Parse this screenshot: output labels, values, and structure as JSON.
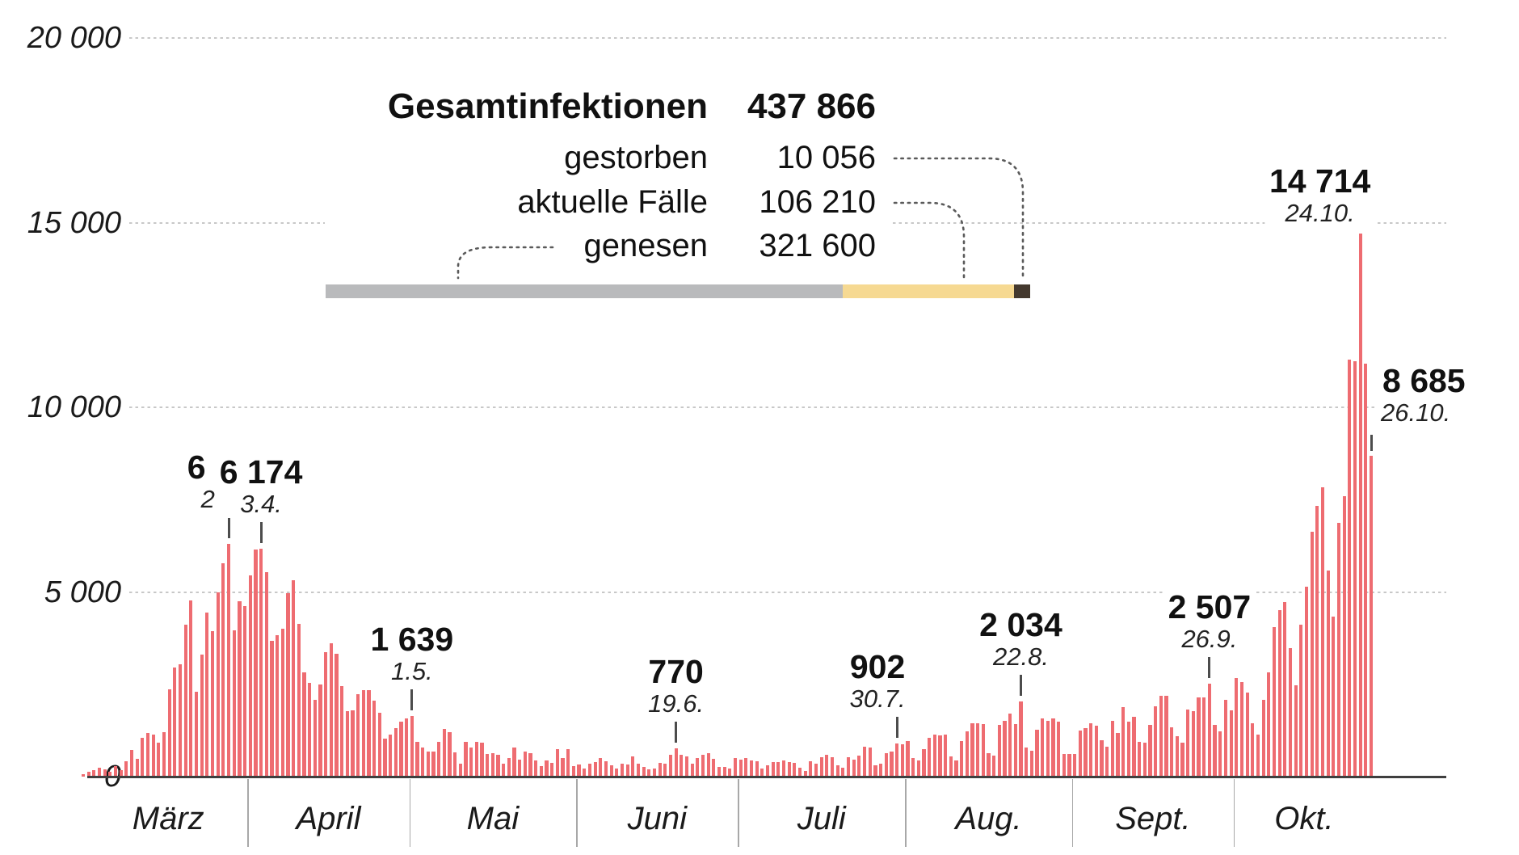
{
  "summary": {
    "title": "Gesamtinfektionen",
    "title_value": "437 866",
    "rows": [
      {
        "label": "gestorben",
        "value": "10 056"
      },
      {
        "label": "aktuelle Fälle",
        "value": "106 210"
      },
      {
        "label": "genesen",
        "value": "321 600"
      }
    ]
  },
  "stacked_bar": {
    "segments": [
      {
        "name": "genesen",
        "color": "#b9babc",
        "fraction": 0.7344
      },
      {
        "name": "aktuelle Fälle",
        "color": "#f6d992",
        "fraction": 0.2426
      },
      {
        "name": "gestorben",
        "color": "#44392e",
        "fraction": 0.023
      }
    ]
  },
  "chart_data": {
    "type": "bar",
    "title": "Gesamtinfektionen 437 866",
    "xlabel": "",
    "ylabel": "",
    "ylim": [
      0,
      20000
    ],
    "grid": "dotted-horizontal",
    "bar_color": "#ee6c71",
    "y_ticks": [
      {
        "label": "0",
        "value": 0
      },
      {
        "label": "5 000",
        "value": 5000
      },
      {
        "label": "10 000",
        "value": 10000
      },
      {
        "label": "15 000",
        "value": 15000
      },
      {
        "label": "20 000",
        "value": 20000
      }
    ],
    "months": [
      {
        "label": "März",
        "days": 31
      },
      {
        "label": "April",
        "days": 30
      },
      {
        "label": "Mai",
        "days": 31
      },
      {
        "label": "Juni",
        "days": 30
      },
      {
        "label": "Juli",
        "days": 31
      },
      {
        "label": "Aug.",
        "days": 31
      },
      {
        "label": "Sept.",
        "days": 30
      },
      {
        "label": "Okt.",
        "days": 26
      }
    ],
    "values": [
      66,
      130,
      180,
      240,
      195,
      130,
      280,
      170,
      410,
      730,
      485,
      1043,
      1174,
      1144,
      910,
      1210,
      2365,
      2960,
      3044,
      4122,
      4764,
      2300,
      3311,
      4438,
      3935,
      4995,
      5780,
      6294,
      3965,
      4751,
      4615,
      5453,
      6156,
      6174,
      5534,
      3677,
      3834,
      4003,
      4974,
      5323,
      4133,
      2821,
      2537,
      2082,
      2486,
      3380,
      3609,
      3331,
      2458,
      1775,
      1785,
      2237,
      2352,
      2337,
      2055,
      1737,
      1018,
      1144,
      1304,
      1478,
      1584,
      1639,
      945,
      793,
      679,
      685,
      947,
      1284,
      1209,
      667,
      357,
      933,
      798,
      933,
      913,
      620,
      626,
      583,
      342,
      513,
      797,
      460,
      678,
      638,
      431,
      289,
      432,
      362,
      741,
      507,
      738,
      286,
      333,
      213,
      342,
      394,
      507,
      407,
      301,
      214,
      350,
      318,
      555,
      348,
      258,
      192,
      210,
      378,
      345,
      580,
      770,
      601,
      537,
      357,
      503,
      587,
      630,
      477,
      256,
      262,
      221,
      498,
      466,
      503,
      446,
      422,
      219,
      312,
      390,
      397,
      442,
      395,
      378,
      248,
      159,
      412,
      351,
      534,
      583,
      529,
      305,
      249,
      522,
      454,
      569,
      815,
      781,
      305,
      340,
      633,
      684,
      902,
      870,
      955,
      509,
      436,
      741,
      1045,
      1145,
      1122,
      1147,
      555,
      436,
      966,
      1226,
      1445,
      1449,
      1415,
      625,
      561,
      1390,
      1510,
      1707,
      1427,
      2034,
      782,
      711,
      1278,
      1576,
      1507,
      1571,
      1479,
      610,
      611,
      610,
      1256,
      1311,
      1453,
      1378,
      988,
      814,
      1499,
      1176,
      1892,
      1484,
      1630,
      948,
      927,
      1407,
      1901,
      2194,
      2179,
      1345,
      1100,
      922,
      1821,
      1769,
      2143,
      2153,
      2507,
      1411,
      1219,
      2089,
      1798,
      2673,
      2563,
      2279,
      1449,
      1144,
      2089,
      2828,
      4058,
      4516,
      4721,
      3483,
      2467,
      4122,
      5132,
      6638,
      7334,
      7830,
      5587,
      4325,
      6868,
      7595,
      11287,
      11242,
      14714,
      11176,
      8685
    ],
    "annotations": [
      {
        "value": "6 294",
        "date": "28.3.",
        "day": 27,
        "placement": "above",
        "tick": true,
        "dx": 0
      },
      {
        "value": "6 174",
        "date": "3.4.",
        "day": 33,
        "placement": "above",
        "tick": true,
        "dx": 0
      },
      {
        "value": "1 639",
        "date": "1.5.",
        "day": 61,
        "placement": "above",
        "tick": true,
        "dx": 0
      },
      {
        "value": "770",
        "date": "19.6.",
        "day": 110,
        "placement": "above",
        "tick": true,
        "dx": 0
      },
      {
        "value": "902",
        "date": "30.7.",
        "day": 151,
        "placement": "above",
        "tick": true,
        "dx": -24
      },
      {
        "value": "2 034",
        "date": "22.8.",
        "day": 174,
        "placement": "above",
        "tick": true,
        "dx": 0
      },
      {
        "value": "2 507",
        "date": "26.9.",
        "day": 209,
        "placement": "above",
        "tick": true,
        "dx": 0
      },
      {
        "value": "14 714",
        "date": "24.10.",
        "day": 237,
        "placement": "above",
        "tick": false,
        "dx": -50
      },
      {
        "value": "8 685",
        "date": "26.10.",
        "day": 239,
        "placement": "right",
        "tick": true,
        "dx": 0
      }
    ]
  }
}
